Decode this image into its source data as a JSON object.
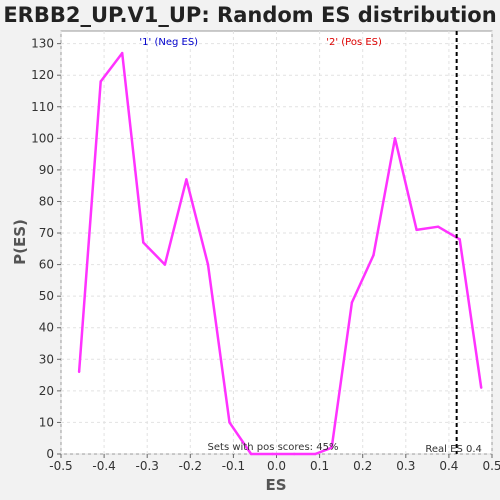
{
  "chart_data": {
    "type": "line",
    "title": "ERBB2_UP.V1_UP: Random ES distribution",
    "xlabel": "ES",
    "ylabel": "P(ES)",
    "xlim": [
      -0.5,
      0.5
    ],
    "ylim": [
      0,
      134
    ],
    "x_ticks": [
      -0.5,
      -0.4,
      -0.3,
      -0.2,
      -0.1,
      0.0,
      0.1,
      0.2,
      0.3,
      0.4,
      0.5
    ],
    "x_tick_labels": [
      "-0.5",
      "-0.4",
      "-0.3",
      "-0.2",
      "-0.1",
      "0.0",
      "0.1",
      "0.2",
      "0.3",
      "0.4",
      "0.5"
    ],
    "y_ticks": [
      0,
      10,
      20,
      30,
      40,
      50,
      60,
      70,
      80,
      90,
      100,
      110,
      120,
      130
    ],
    "y_tick_labels": [
      "0",
      "10",
      "20",
      "30",
      "40",
      "50",
      "60",
      "70",
      "80",
      "90",
      "100",
      "110",
      "120",
      "130"
    ],
    "grid": true,
    "series": [
      {
        "color": "#ff33ff",
        "x": [
          -0.458,
          -0.408,
          -0.358,
          -0.309,
          -0.259,
          -0.209,
          -0.159,
          -0.109,
          -0.059,
          -0.009,
          0.041,
          0.09,
          0.128,
          0.175,
          0.225,
          0.275,
          0.325,
          0.375,
          0.425,
          0.475
        ],
        "y": [
          26,
          118,
          127,
          67,
          60,
          87,
          60,
          10,
          0,
          0,
          0,
          0,
          2,
          48,
          63,
          100,
          71,
          72,
          68,
          21
        ]
      }
    ],
    "annotations": {
      "neg_label": "'1' (Neg ES)",
      "neg_label_x": -0.25,
      "neg_color": "#0000cc",
      "pos_label": "'2' (Pos ES)",
      "pos_label_x": 0.18,
      "pos_color": "#dd0000",
      "real_es_value": 0.418,
      "real_es_label": "Real ES 0.4",
      "pos_scores_text": "Sets with pos scores: 45%"
    }
  }
}
